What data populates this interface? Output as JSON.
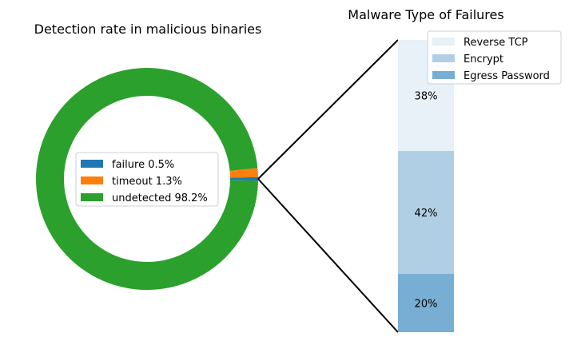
{
  "chart_data": [
    {
      "type": "pie",
      "variant": "donut",
      "title": "Detection rate in malicious binaries",
      "legend_position": "center",
      "slices": [
        {
          "name": "failure 0.5%",
          "value": 0.5,
          "color": "#1f77b4"
        },
        {
          "name": "timeout 1.3%",
          "value": 1.3,
          "color": "#ff7f0e"
        },
        {
          "name": "undetected 98.2%",
          "value": 98.2,
          "color": "#2ca02c"
        }
      ]
    },
    {
      "type": "bar",
      "variant": "stacked",
      "title": "Malware Type of Failures",
      "legend_position": "top-right",
      "segments": [
        {
          "name": "Reverse TCP",
          "value": 38,
          "label": "38%",
          "color": "#e8f0f8"
        },
        {
          "name": "Encrypt",
          "value": 42,
          "label": "42%",
          "color": "#b0cfe4"
        },
        {
          "name": "Egress Password",
          "value": 20,
          "label": "20%",
          "color": "#78aed3"
        }
      ]
    }
  ]
}
